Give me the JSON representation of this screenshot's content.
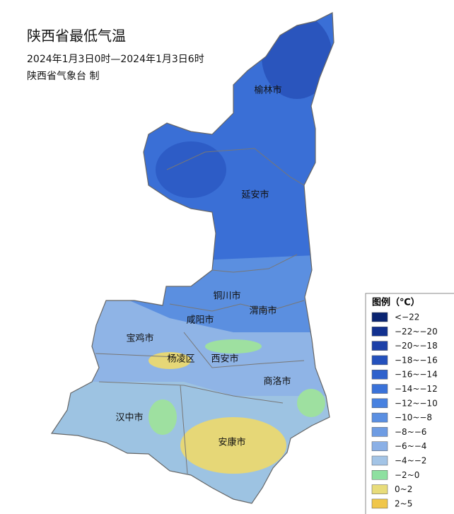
{
  "title": "陕西省最低气温",
  "time_range": "2024年1月3日0时—2024年1月3日6时",
  "issuer": "陕西省气象台 制",
  "cities": [
    "榆林市",
    "延安市",
    "铜川市",
    "渭南市",
    "咸阳市",
    "宝鸡市",
    "杨凌区",
    "西安市",
    "商洛市",
    "汉中市",
    "安康市"
  ],
  "legend": {
    "title": "图例（℃）",
    "items": [
      {
        "label": "<−22",
        "color": "#0a2471"
      },
      {
        "label": "−22~−20",
        "color": "#12318f"
      },
      {
        "label": "−20~−18",
        "color": "#1c40a8"
      },
      {
        "label": "−18~−16",
        "color": "#2451bd"
      },
      {
        "label": "−16~−14",
        "color": "#2e61cc"
      },
      {
        "label": "−14~−12",
        "color": "#3a72d9"
      },
      {
        "label": "−12~−10",
        "color": "#4781e0"
      },
      {
        "label": "−10~−8",
        "color": "#5a8fe2"
      },
      {
        "label": "−8~−6",
        "color": "#6e9ce3"
      },
      {
        "label": "−6~−4",
        "color": "#8bb0e6"
      },
      {
        "label": "−4~−2",
        "color": "#a3c4e6"
      },
      {
        "label": "−2~0",
        "color": "#8ee0a0"
      },
      {
        "label": "0~2",
        "color": "#e8dc7a"
      },
      {
        "label": "2~5",
        "color": "#f0c64a"
      }
    ]
  }
}
